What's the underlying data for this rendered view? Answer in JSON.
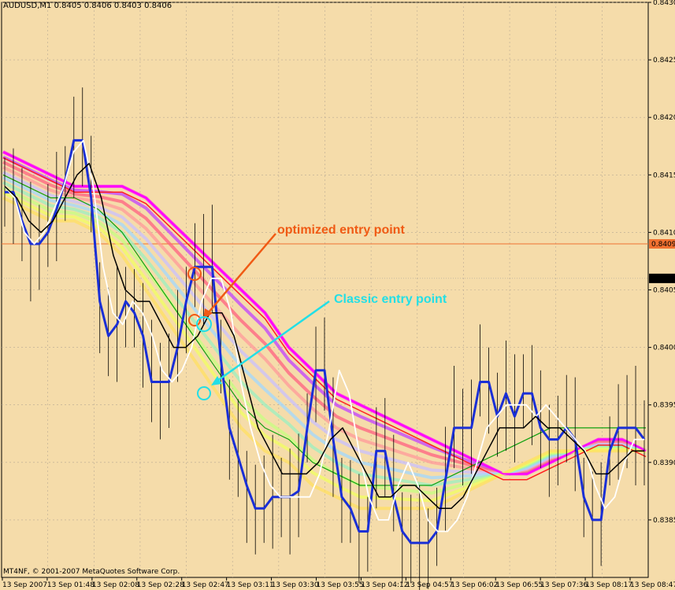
{
  "header": {
    "text": "AUDUSD,M1  0.8405 0.8406 0.8403 0.8406"
  },
  "footer": {
    "copyright": "MT4NF, © 2001-2007 MetaQuotes Software Corp."
  },
  "colors": {
    "background": "#f5dcaa",
    "grid": "#b8a994",
    "hline": "#f07030",
    "price_line": "#1a2fd6",
    "white_line": "#ffffff",
    "black_line": "#000000",
    "optimized": "#f05a14",
    "classic": "#22dfe6"
  },
  "chart_data": {
    "type": "line",
    "symbol": "AUDUSD,M1",
    "ylim": [
      0.838,
      0.843
    ],
    "y_ticks": [
      "0.8430",
      "0.8425",
      "0.8420",
      "0.8415",
      "0.8410",
      "0.8405",
      "0.8400",
      "0.8395",
      "0.8390",
      "0.8385"
    ],
    "x_ticks": [
      "13 Sep 2007",
      "13 Sep 01:48",
      "13 Sep 02:08",
      "13 Sep 02:28",
      "13 Sep 02:47",
      "13 Sep 03:11",
      "13 Sep 03:30",
      "13 Sep 03:55",
      "13 Sep 04:12",
      "13 Sep 04:57",
      "13 Sep 06:02",
      "13 Sep 06:55",
      "13 Sep 07:36",
      "13 Sep 08:17",
      "13 Sep 08:47"
    ],
    "price_labels": [
      {
        "value": 0.8409,
        "text": "0.8409",
        "style": "orange"
      },
      {
        "value": 0.8406,
        "text": "0.8406",
        "style": "black"
      }
    ],
    "annotations": [
      {
        "text": "optimized entry point",
        "color": "#f05a14"
      },
      {
        "text": "Classic entry point",
        "color": "#22dfe6"
      }
    ],
    "series": [
      {
        "name": "price",
        "color": "#1a2fd6",
        "values": [
          0.84135,
          0.84135,
          0.8411,
          0.8409,
          0.8409,
          0.841,
          0.8412,
          0.84145,
          0.8418,
          0.8418,
          0.8413,
          0.8404,
          0.8401,
          0.8402,
          0.8404,
          0.8403,
          0.8401,
          0.8397,
          0.8397,
          0.8397,
          0.84,
          0.8404,
          0.8407,
          0.8407,
          0.8407,
          0.8399,
          0.8393,
          0.83905,
          0.8388,
          0.8386,
          0.8386,
          0.8387,
          0.8387,
          0.8387,
          0.83875,
          0.8393,
          0.8398,
          0.8398,
          0.8392,
          0.8387,
          0.8386,
          0.8384,
          0.8384,
          0.8391,
          0.8391,
          0.8387,
          0.8384,
          0.8383,
          0.8383,
          0.8383,
          0.8384,
          0.83885,
          0.8393,
          0.8393,
          0.8393,
          0.8397,
          0.8397,
          0.8394,
          0.8396,
          0.8394,
          0.8396,
          0.8396,
          0.8393,
          0.8392,
          0.8392,
          0.8393,
          0.8392,
          0.8387,
          0.8385,
          0.8385,
          0.8391,
          0.8393,
          0.8393,
          0.8393,
          0.8392
        ]
      },
      {
        "name": "white",
        "color": "#ffffff",
        "values": [
          0.8414,
          0.8413,
          0.841,
          0.8409,
          0.841,
          0.8412,
          0.8414,
          0.8417,
          0.8418,
          0.8414,
          0.8407,
          0.8403,
          0.8402,
          0.8404,
          0.8403,
          0.8401,
          0.8398,
          0.8397,
          0.8398,
          0.84,
          0.8404,
          0.8406,
          0.8406,
          0.8403,
          0.8397,
          0.8393,
          0.839,
          0.8388,
          0.8387,
          0.8387,
          0.8387,
          0.8387,
          0.8389,
          0.8393,
          0.8398,
          0.8396,
          0.8391,
          0.8387,
          0.8385,
          0.8385,
          0.8388,
          0.839,
          0.8388,
          0.8385,
          0.8384,
          0.8384,
          0.8385,
          0.8387,
          0.839,
          0.8393,
          0.8394,
          0.8395,
          0.8395,
          0.8395,
          0.8394,
          0.8395,
          0.8394,
          0.8393,
          0.8392,
          0.8391,
          0.8388,
          0.8386,
          0.8387,
          0.839,
          0.8392,
          0.8392
        ]
      },
      {
        "name": "black",
        "color": "#000000",
        "values": [
          0.8414,
          0.8413,
          0.8411,
          0.841,
          0.8411,
          0.8413,
          0.8415,
          0.8416,
          0.8413,
          0.8408,
          0.8405,
          0.8404,
          0.8404,
          0.8402,
          0.84,
          0.84,
          0.8401,
          0.8403,
          0.8403,
          0.8401,
          0.8397,
          0.8393,
          0.8391,
          0.8389,
          0.8389,
          0.8389,
          0.839,
          0.8392,
          0.8393,
          0.8391,
          0.8389,
          0.8387,
          0.8387,
          0.8388,
          0.8388,
          0.8387,
          0.8386,
          0.8386,
          0.8387,
          0.8389,
          0.8391,
          0.8393,
          0.8393,
          0.8393,
          0.8394,
          0.8393,
          0.8393,
          0.8392,
          0.8391,
          0.8389,
          0.8389,
          0.839,
          0.8391,
          0.8391
        ]
      }
    ]
  }
}
